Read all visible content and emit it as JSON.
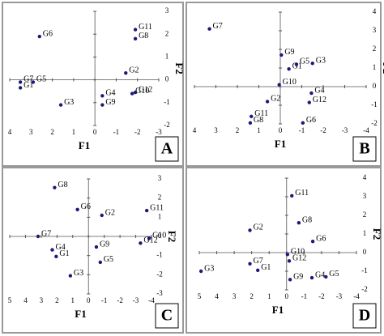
{
  "chart_data": [
    {
      "type": "scatter",
      "title": "A",
      "x_label": "F1",
      "y_label": "F2",
      "color": "#1a1a7a",
      "xlim": [
        4,
        -3
      ],
      "ylim": [
        -2,
        3
      ],
      "xticks": [
        4,
        3,
        2,
        1,
        0,
        -1,
        -2,
        -3
      ],
      "yticks": [
        3,
        2,
        1,
        0,
        -1,
        -2
      ],
      "series": [
        {
          "labels": [
            "G6",
            "G11",
            "G8",
            "G2",
            "G7",
            "G1",
            "G5",
            "G3",
            "G4",
            "G9",
            "G10",
            "G12"
          ],
          "x": [
            2.6,
            -1.9,
            -1.9,
            -1.45,
            3.5,
            3.5,
            2.9,
            1.6,
            -0.35,
            -0.35,
            -1.75,
            -1.9
          ],
          "values": [
            1.9,
            2.2,
            1.8,
            0.3,
            -0.1,
            -0.35,
            -0.1,
            -1.1,
            -0.7,
            -1.1,
            -0.6,
            -0.55
          ]
        }
      ]
    },
    {
      "type": "scatter",
      "title": "B",
      "x_label": "F1",
      "y_label": "F2",
      "color": "#1a1a7a",
      "xlim": [
        4,
        -4
      ],
      "ylim": [
        -2,
        4
      ],
      "xticks": [
        4,
        3,
        2,
        1,
        0,
        -1,
        -2,
        -3,
        -4
      ],
      "yticks": [
        4,
        3,
        2,
        1,
        0,
        -1,
        -2
      ],
      "series": [
        {
          "labels": [
            "G7",
            "G9",
            "G5",
            "G3",
            "G1",
            "G10",
            "G4",
            "G12",
            "G2",
            "G11",
            "G8",
            "G6"
          ],
          "x": [
            3.3,
            -0.05,
            -0.75,
            -1.5,
            -0.4,
            0.05,
            -1.45,
            -1.35,
            0.6,
            1.35,
            1.4,
            -1.05
          ],
          "values": [
            3.1,
            1.7,
            1.2,
            1.25,
            0.95,
            0.1,
            -0.35,
            -0.85,
            -0.8,
            -1.6,
            -1.95,
            -1.95
          ]
        }
      ]
    },
    {
      "type": "scatter",
      "title": "C",
      "x_label": "F1",
      "y_label": "F2",
      "color": "#1a1a7a",
      "xlim": [
        5,
        -4
      ],
      "ylim": [
        -3,
        3
      ],
      "xticks": [
        5,
        4,
        3,
        2,
        1,
        0,
        -1,
        -2,
        -3,
        -4
      ],
      "yticks": [
        3,
        2,
        1,
        0,
        -1,
        -2,
        -3
      ],
      "series": [
        {
          "labels": [
            "G8",
            "G6",
            "G2",
            "G11",
            "G7",
            "G10",
            "G12",
            "G9",
            "G4",
            "G1",
            "G5",
            "G3"
          ],
          "x": [
            2.15,
            0.7,
            -0.85,
            -3.7,
            3.2,
            -3.85,
            -3.3,
            -0.5,
            2.3,
            2.05,
            -0.75,
            1.15
          ],
          "values": [
            2.55,
            1.4,
            1.1,
            1.35,
            0,
            -0.1,
            -0.35,
            -0.55,
            -0.7,
            -1.05,
            -1.35,
            -2.05
          ]
        }
      ]
    },
    {
      "type": "scatter",
      "title": "D",
      "x_label": "F1",
      "y_label": "F2",
      "color": "#1a1a7a",
      "xlim": [
        5,
        -4
      ],
      "ylim": [
        -2,
        4
      ],
      "xticks": [
        5,
        4,
        3,
        2,
        1,
        0,
        -1,
        -2,
        -3,
        -4
      ],
      "yticks": [
        4,
        3,
        2,
        1,
        0,
        -1,
        -2
      ],
      "series": [
        {
          "labels": [
            "G11",
            "G2",
            "G8",
            "G6",
            "G10",
            "G12",
            "G7",
            "G1",
            "G3",
            "G9",
            "G4",
            "G5"
          ],
          "x": [
            -0.3,
            2.1,
            -0.7,
            -1.5,
            -0.05,
            -0.15,
            2.1,
            1.65,
            4.9,
            -0.2,
            -1.45,
            -2.25
          ],
          "values": [
            3.05,
            1.2,
            1.6,
            0.6,
            -0.1,
            -0.45,
            -0.6,
            -0.95,
            -1.0,
            -1.45,
            -1.35,
            -1.3
          ]
        }
      ]
    }
  ]
}
